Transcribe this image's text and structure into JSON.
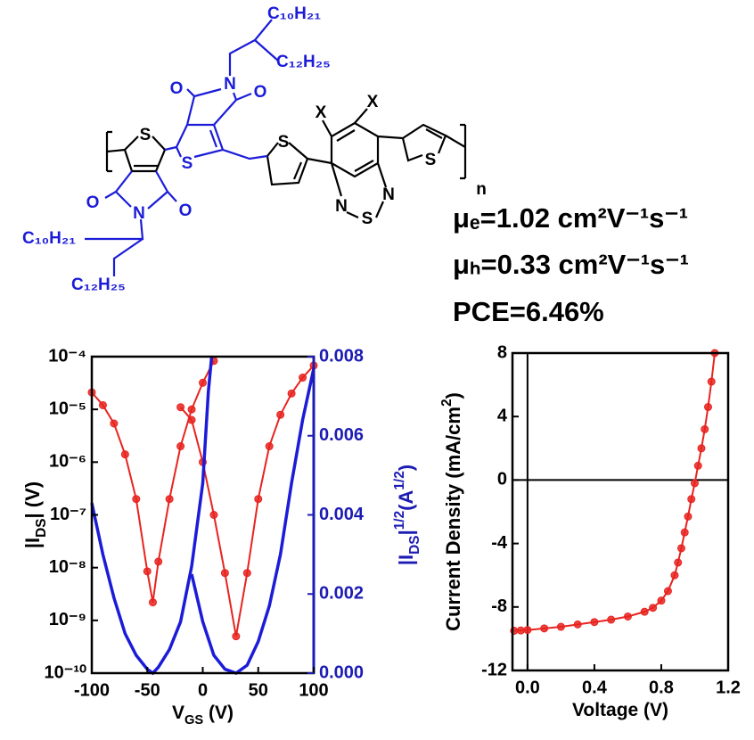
{
  "structure": {
    "labels": [
      "C₁₀H₂₁",
      "C₁₂H₂₅",
      "O",
      "N",
      "O",
      "C₁₀H₂₁",
      "C₁₂H₂₅",
      "O",
      "N",
      "O",
      "S",
      "S",
      "S",
      "S",
      "X",
      "X",
      "N",
      "S",
      "N",
      "n"
    ]
  },
  "properties": [
    "μₑ=1.02 cm²V⁻¹s⁻¹",
    "μₕ=0.33 cm²V⁻¹s⁻¹",
    "PCE=6.46%"
  ],
  "chart_data": [
    {
      "type": "line",
      "xlabel": [
        {
          "text": "V"
        },
        {
          "text": "GS",
          "style": "sub"
        },
        {
          "text": " (V)"
        }
      ],
      "ylabel": [
        {
          "text": "|I"
        },
        {
          "text": "DS",
          "style": "sub"
        },
        {
          "text": "| (V)"
        }
      ],
      "y2label": [
        {
          "text": "|I"
        },
        {
          "text": "DS",
          "style": "sub"
        },
        {
          "text": "|"
        },
        {
          "text": "1/2",
          "style": "sup"
        },
        {
          "text": "(A"
        },
        {
          "text": "1/2",
          "style": "sup"
        },
        {
          "text": ")"
        }
      ],
      "xlim": [
        -100,
        100
      ],
      "xticks": [
        -100,
        -50,
        0,
        50,
        100
      ],
      "yscale": "log",
      "ylim": [
        1e-10,
        0.0001
      ],
      "yticks": [
        {
          "value": 1e-10,
          "label": "10⁻¹⁰"
        },
        {
          "value": 1e-09,
          "label": "10⁻⁹"
        },
        {
          "value": 1e-08,
          "label": "10⁻⁸"
        },
        {
          "value": 1e-07,
          "label": "10⁻⁷"
        },
        {
          "value": 1e-06,
          "label": "10⁻⁶"
        },
        {
          "value": 1e-05,
          "label": "10⁻⁵"
        },
        {
          "value": 0.0001,
          "label": "10⁻⁴"
        }
      ],
      "y2lim": [
        0,
        0.008
      ],
      "y2ticks": [
        {
          "value": 0,
          "label": "0.000"
        },
        {
          "value": 0.002,
          "label": "0.002"
        },
        {
          "value": 0.004,
          "label": "0.004"
        },
        {
          "value": 0.006,
          "label": "0.006"
        },
        {
          "value": 0.008,
          "label": "0.008"
        }
      ],
      "y2color": "#1c1cb4",
      "series": [
        {
          "color": "#e8231f",
          "marker": "circle",
          "x": [
            -100,
            -90,
            -80,
            -70,
            -60,
            -50,
            -45,
            -40,
            -30,
            -20,
            -10,
            0,
            10
          ],
          "values": [
            2.1e-05,
            1.2e-05,
            5.4e-06,
            1.4e-06,
            2e-07,
            8.5e-09,
            2.2e-09,
            1.3e-08,
            2e-07,
            2e-06,
            1e-05,
            3.2e-05,
            8.3e-05
          ]
        },
        {
          "color": "#e8231f",
          "marker": "circle",
          "x": [
            -20,
            -10,
            0,
            10,
            20,
            30,
            40,
            50,
            60,
            70,
            80,
            90,
            100
          ],
          "values": [
            1.1e-05,
            6.3e-06,
            1e-06,
            1e-07,
            7.9e-09,
            5e-10,
            7.9e-09,
            2e-07,
            2e-06,
            7.9e-06,
            2e-05,
            4e-05,
            6.8e-05
          ]
        },
        {
          "color": "#1c1cd8",
          "axis": "y2",
          "x": [
            -100,
            -90,
            -80,
            -70,
            -60,
            -50,
            -45,
            -40,
            -30,
            -20,
            -10,
            0,
            5,
            8
          ],
          "values": [
            0.0043,
            0.003,
            0.0019,
            0.001,
            0.00045,
            0.0001,
            0,
            0.00015,
            0.0006,
            0.0013,
            0.0027,
            0.0048,
            0.0071,
            0.008
          ]
        },
        {
          "color": "#1c1cd8",
          "axis": "y2",
          "x": [
            -10,
            0,
            10,
            20,
            30,
            40,
            50,
            60,
            70,
            80,
            90,
            100
          ],
          "values": [
            0.0025,
            0.0013,
            0.00045,
            0.0001,
            0,
            0.0002,
            0.0008,
            0.0017,
            0.003,
            0.0048,
            0.0064,
            0.0077
          ]
        }
      ]
    },
    {
      "type": "line",
      "zero_lines": true,
      "xlabel": [
        {
          "text": "Voltage (V)"
        }
      ],
      "ylabel": [
        {
          "text": "Current Density (mA/cm"
        },
        {
          "text": "2",
          "style": "sup"
        },
        {
          "text": ")"
        }
      ],
      "xlim": [
        -0.09,
        1.2
      ],
      "xticks": [
        {
          "value": 0,
          "label": "0.0"
        },
        0.4,
        0.8,
        1.2
      ],
      "ylim": [
        -12,
        8
      ],
      "yticks": [
        -12,
        -8,
        -4,
        0,
        4,
        8
      ],
      "series": [
        {
          "color": "#e8231f",
          "marker": "circle",
          "x": [
            -0.08,
            -0.04,
            0,
            0.1,
            0.2,
            0.3,
            0.4,
            0.5,
            0.6,
            0.7,
            0.75,
            0.8,
            0.84,
            0.88,
            0.9,
            0.92,
            0.94,
            0.96,
            0.98,
            1.0,
            1.02,
            1.04,
            1.06,
            1.08,
            1.1,
            1.12
          ],
          "values": [
            -9.5,
            -9.48,
            -9.45,
            -9.35,
            -9.25,
            -9.1,
            -8.95,
            -8.8,
            -8.6,
            -8.3,
            -8.05,
            -7.6,
            -7.0,
            -6.0,
            -5.2,
            -4.3,
            -3.3,
            -2.3,
            -1.2,
            -0.2,
            0.9,
            2.0,
            3.2,
            4.6,
            6.2,
            8.0
          ]
        }
      ]
    }
  ]
}
